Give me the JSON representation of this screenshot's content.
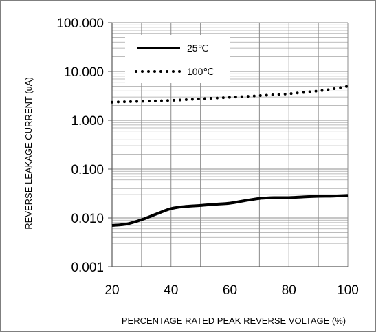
{
  "chart_data": {
    "type": "line",
    "title": "",
    "xlabel": "PERCENTAGE RATED PEAK REVERSE VOLTAGE (%)",
    "ylabel": "REVERSE LEAKAGE CURRENT (uA)",
    "xlim": [
      20,
      100
    ],
    "ylim": [
      0.001,
      100
    ],
    "yscale": "log",
    "grid": true,
    "xticks": [
      20,
      40,
      60,
      80,
      100
    ],
    "xtick_labels": [
      "20",
      "40",
      "60",
      "80",
      "100"
    ],
    "yticks": [
      0.001,
      0.01,
      0.1,
      1,
      10,
      100
    ],
    "ytick_labels": [
      "0.001",
      "0.010",
      "0.100",
      "1.000",
      "10.000",
      "100.000"
    ],
    "legend_position": "top-left",
    "series": [
      {
        "name": "25℃",
        "style": "solid",
        "color": "#000000",
        "x": [
          20,
          25,
          30,
          35,
          40,
          45,
          50,
          55,
          60,
          65,
          70,
          75,
          80,
          85,
          90,
          95,
          100
        ],
        "y": [
          0.007,
          0.0075,
          0.0092,
          0.012,
          0.0155,
          0.0172,
          0.018,
          0.019,
          0.02,
          0.0225,
          0.025,
          0.026,
          0.026,
          0.027,
          0.0278,
          0.028,
          0.029
        ]
      },
      {
        "name": "100℃",
        "style": "dotted",
        "color": "#000000",
        "x": [
          20,
          30,
          40,
          50,
          60,
          70,
          80,
          90,
          95,
          100
        ],
        "y": [
          2.35,
          2.45,
          2.55,
          2.75,
          2.95,
          3.2,
          3.5,
          4.0,
          4.4,
          5.0
        ]
      }
    ]
  }
}
